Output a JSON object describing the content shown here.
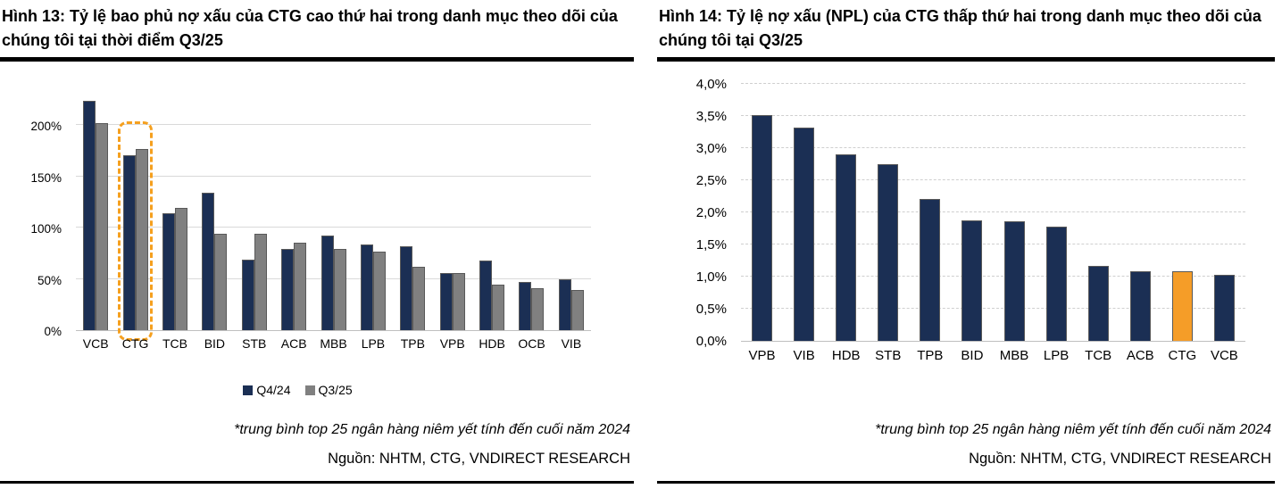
{
  "figures": [
    {
      "title": "Hình 13: Tỷ lệ bao phủ nợ xấu của CTG cao thứ hai trong danh mục theo dõi của chúng tôi tại thời điểm Q3/25",
      "footnote": "*trung bình top 25 ngân hàng niêm yết tính đến cuối năm 2024",
      "source": "Nguồn: NHTM, CTG, VNDIRECT RESEARCH",
      "legend": [
        {
          "label": "Q4/24",
          "color": "#1B2F54"
        },
        {
          "label": "Q3/25",
          "color": "#808080"
        }
      ]
    },
    {
      "title": "Hình 14: Tỷ lệ nợ xấu (NPL) của CTG thấp thứ hai trong danh mục theo dõi của chúng tôi tại Q3/25",
      "footnote": "*trung bình top 25 ngân hàng niêm yết tính đến cuối năm 2024",
      "source": "Nguồn: NHTM, CTG, VNDIRECT RESEARCH"
    }
  ],
  "chart_data": [
    {
      "type": "bar",
      "title": "Hình 13: Tỷ lệ bao phủ nợ xấu của CTG cao thứ hai trong danh mục theo dõi của chúng tôi tại thời điểm Q3/25",
      "categories": [
        "VCB",
        "CTG",
        "TCB",
        "BID",
        "STB",
        "ACB",
        "MBB",
        "LPB",
        "TPB",
        "VPB",
        "HDB",
        "OCB",
        "VIB"
      ],
      "series": [
        {
          "name": "Q4/24",
          "color": "#1B2F54",
          "values": [
            224,
            171,
            114,
            134,
            69,
            79,
            92,
            84,
            82,
            56,
            68,
            47,
            50
          ]
        },
        {
          "name": "Q3/25",
          "color": "#808080",
          "values": [
            202,
            177,
            119,
            94,
            94,
            85,
            79,
            77,
            62,
            56,
            44,
            41,
            39
          ]
        }
      ],
      "unit": "%",
      "ylim": [
        0,
        235
      ],
      "yticks": [
        0,
        50,
        100,
        150,
        200
      ],
      "ytick_labels": [
        "0%",
        "50%",
        "100%",
        "150%",
        "200%"
      ],
      "grid": true,
      "legend_position": "bottom",
      "highlight": {
        "category": "CTG",
        "style": "dashed-box",
        "color": "#F5A01F"
      }
    },
    {
      "type": "bar",
      "title": "Hình 14: Tỷ lệ nợ xấu (NPL) của CTG thấp thứ hai trong danh mục theo dõi của chúng tôi tại Q3/25",
      "categories": [
        "VPB",
        "VIB",
        "HDB",
        "STB",
        "TPB",
        "BID",
        "MBB",
        "LPB",
        "TCB",
        "ACB",
        "CTG",
        "VCB"
      ],
      "values": [
        3.52,
        3.32,
        2.9,
        2.75,
        2.21,
        1.88,
        1.86,
        1.78,
        1.16,
        1.09,
        1.08,
        1.03
      ],
      "bar_color": "#1B2F54",
      "unit": "%",
      "ylim": [
        0,
        4.0
      ],
      "yticks": [
        0,
        0.5,
        1.0,
        1.5,
        2.0,
        2.5,
        3.0,
        3.5,
        4.0
      ],
      "ytick_labels": [
        "0,0%",
        "0,5%",
        "1,0%",
        "1,5%",
        "2,0%",
        "2,5%",
        "3,0%",
        "3,5%",
        "4,0%"
      ],
      "grid": true,
      "legend_position": "none",
      "highlight": {
        "category": "CTG",
        "style": "fill",
        "color": "#F59D28"
      }
    }
  ]
}
